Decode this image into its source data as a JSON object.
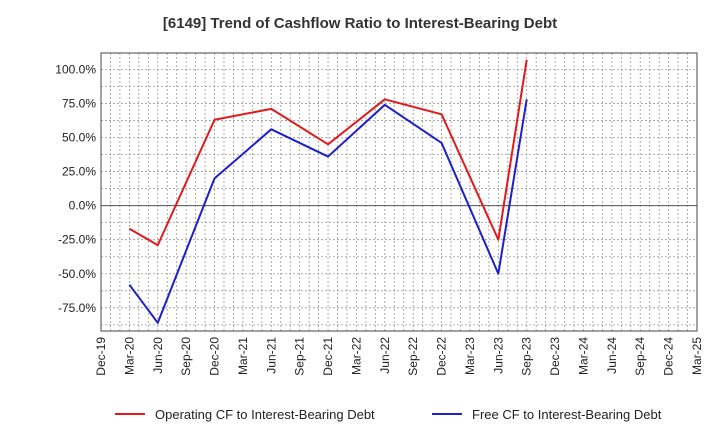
{
  "chart_data": {
    "type": "line",
    "title": "[6149]  Trend of Cashflow Ratio to Interest-Bearing Debt",
    "xlabel": "",
    "ylabel": "",
    "x": [
      "Dec-19",
      "Mar-20",
      "Jun-20",
      "Sep-20",
      "Dec-20",
      "Mar-21",
      "Jun-21",
      "Sep-21",
      "Dec-21",
      "Mar-22",
      "Jun-22",
      "Sep-22",
      "Dec-22",
      "Mar-23",
      "Jun-23",
      "Sep-23",
      "Dec-23",
      "Mar-24",
      "Jun-24",
      "Sep-24",
      "Dec-24",
      "Mar-25"
    ],
    "ylim": [
      -92,
      112
    ],
    "yticks": [
      100,
      75,
      50,
      25,
      0,
      -25,
      -50,
      -75
    ],
    "ytick_labels": [
      "100.0%",
      "75.0%",
      "50.0%",
      "25.0%",
      "0.0%",
      "-25.0%",
      "-50.0%",
      "-75.0%"
    ],
    "grid": true,
    "legend_position": "bottom",
    "series": [
      {
        "name": "Operating CF to Interest-Bearing Debt",
        "color": "#e31a1c",
        "values": [
          null,
          -17,
          -29,
          null,
          63,
          null,
          71,
          null,
          45,
          null,
          78,
          null,
          67,
          null,
          -25,
          107,
          null,
          null,
          null,
          null,
          null,
          null
        ]
      },
      {
        "name": "Free CF to Interest-Bearing Debt",
        "color": "#1f1fcc",
        "values": [
          null,
          -58,
          -86,
          null,
          20,
          null,
          56,
          null,
          36,
          null,
          74,
          null,
          46,
          null,
          -50,
          78,
          null,
          null,
          null,
          null,
          null,
          null
        ]
      }
    ]
  }
}
